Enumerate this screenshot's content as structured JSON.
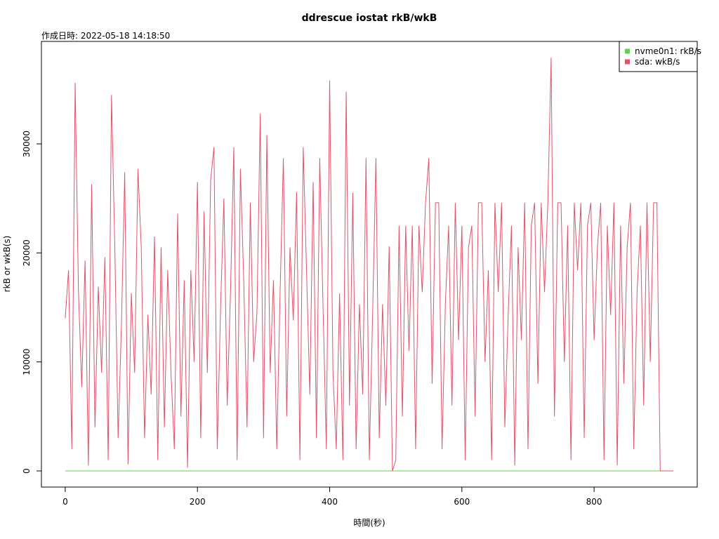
{
  "chart_data": {
    "type": "line",
    "title": "ddrescue iostat rkB/wkB",
    "subtitle": "作成日時: 2022-05-18 14:18:50",
    "x_label": "時間(秒)",
    "y_label": "rkB or wkB(s)",
    "legend": "topright",
    "xlim": [
      -36,
      956
    ],
    "ylim": [
      -1481,
      39400
    ],
    "xticks": [
      0,
      200,
      400,
      600,
      800
    ],
    "yticks": [
      0,
      10000,
      20000,
      30000
    ],
    "x": [
      0,
      5,
      10,
      15,
      20,
      25,
      30,
      35,
      40,
      45,
      50,
      55,
      60,
      65,
      70,
      75,
      80,
      85,
      90,
      95,
      100,
      105,
      110,
      115,
      120,
      125,
      130,
      135,
      140,
      145,
      150,
      155,
      160,
      165,
      170,
      175,
      180,
      185,
      190,
      195,
      200,
      205,
      210,
      215,
      220,
      225,
      230,
      235,
      240,
      245,
      250,
      255,
      260,
      265,
      270,
      275,
      280,
      285,
      290,
      295,
      300,
      305,
      310,
      315,
      320,
      325,
      330,
      335,
      340,
      345,
      350,
      355,
      360,
      365,
      370,
      375,
      380,
      385,
      390,
      395,
      400,
      405,
      410,
      415,
      420,
      425,
      430,
      435,
      440,
      445,
      450,
      455,
      460,
      465,
      470,
      475,
      480,
      485,
      490,
      495,
      500,
      505,
      510,
      515,
      520,
      525,
      530,
      535,
      540,
      545,
      550,
      555,
      560,
      565,
      570,
      575,
      580,
      585,
      590,
      595,
      600,
      605,
      610,
      615,
      620,
      625,
      630,
      635,
      640,
      645,
      650,
      655,
      660,
      665,
      670,
      675,
      680,
      685,
      690,
      695,
      700,
      705,
      710,
      715,
      720,
      725,
      730,
      735,
      740,
      745,
      750,
      755,
      760,
      765,
      770,
      775,
      780,
      785,
      790,
      795,
      800,
      805,
      810,
      815,
      820,
      825,
      830,
      835,
      840,
      845,
      850,
      855,
      860,
      865,
      870,
      875,
      880,
      885,
      890,
      895,
      900,
      905,
      910,
      915,
      920
    ],
    "series": [
      {
        "name": "nvme0n1: rkB/s",
        "color": "#61d04f",
        "values": [
          0,
          0,
          0,
          0,
          0,
          0,
          0,
          0,
          0,
          0,
          0,
          0,
          0,
          0,
          0,
          0,
          0,
          0,
          0,
          0,
          0,
          0,
          0,
          0,
          0,
          0,
          0,
          0,
          0,
          0,
          0,
          0,
          0,
          0,
          0,
          0,
          0,
          0,
          0,
          0,
          0,
          0,
          0,
          0,
          0,
          0,
          0,
          0,
          0,
          0,
          0,
          0,
          0,
          0,
          0,
          0,
          0,
          0,
          0,
          0,
          0,
          0,
          0,
          0,
          0,
          0,
          0,
          0,
          0,
          0,
          0,
          0,
          0,
          0,
          0,
          0,
          0,
          0,
          0,
          0,
          0,
          0,
          0,
          0,
          0,
          0,
          0,
          0,
          0,
          0,
          0,
          0,
          0,
          0,
          0,
          0,
          0,
          0,
          0,
          0,
          0,
          0,
          0,
          0,
          0,
          0,
          0,
          0,
          0,
          0,
          0,
          0,
          0,
          0,
          0,
          0,
          0,
          0,
          0,
          0,
          0,
          0,
          0,
          0,
          0,
          0,
          0,
          0,
          0,
          0,
          0,
          0,
          0,
          0,
          0,
          0,
          0,
          0,
          0,
          0,
          0,
          0,
          0,
          0,
          0,
          0,
          0,
          0,
          0,
          0,
          0,
          0,
          0,
          0,
          0,
          0,
          0,
          0,
          0,
          0,
          0,
          0,
          0,
          0,
          0,
          0,
          0,
          0,
          0,
          0,
          0,
          0,
          0,
          0,
          0,
          0,
          0,
          0,
          0,
          0,
          0,
          0,
          0,
          0,
          0
        ]
      },
      {
        "name": "sda: wkB/s",
        "color": "#df536b",
        "values": [
          14000,
          18400,
          2000,
          35600,
          16500,
          7700,
          19300,
          500,
          26300,
          4000,
          16900,
          9000,
          19600,
          1000,
          34500,
          20600,
          3000,
          13300,
          27400,
          600,
          16300,
          9000,
          27700,
          20500,
          3000,
          14300,
          7000,
          21500,
          1000,
          20500,
          4000,
          18400,
          9000,
          2000,
          23600,
          5000,
          17500,
          300,
          18400,
          10000,
          26500,
          3000,
          23800,
          9000,
          26700,
          29700,
          2000,
          15000,
          25000,
          6000,
          16400,
          29700,
          1000,
          27700,
          17500,
          4000,
          24600,
          10000,
          14500,
          32800,
          3000,
          30800,
          9000,
          17500,
          2000,
          16300,
          28700,
          5000,
          20500,
          13800,
          25600,
          1000,
          29700,
          18400,
          7000,
          26500,
          3000,
          28700,
          15000,
          2000,
          35800,
          9000,
          2000,
          16300,
          1000,
          34800,
          6000,
          25500,
          2000,
          15300,
          7000,
          28700,
          1000,
          14500,
          28700,
          3000,
          15300,
          6000,
          20600,
          0,
          1000,
          22500,
          5000,
          22500,
          11000,
          22500,
          2000,
          22500,
          16400,
          24600,
          28700,
          8000,
          24600,
          24600,
          2000,
          15300,
          22500,
          6000,
          24600,
          12000,
          22500,
          1000,
          20500,
          22500,
          5000,
          24600,
          24600,
          10000,
          18400,
          1000,
          24600,
          16400,
          24600,
          4000,
          14300,
          22500,
          500,
          20500,
          12000,
          24600,
          2000,
          22500,
          24600,
          8000,
          24600,
          16400,
          24600,
          37900,
          5000,
          24600,
          24600,
          10000,
          22500,
          1000,
          24600,
          18400,
          24600,
          3000,
          22500,
          24600,
          12000,
          20500,
          24600,
          1000,
          22500,
          14300,
          24600,
          500,
          22500,
          8000,
          20500,
          24600,
          2000,
          16400,
          22500,
          6000,
          24600,
          10000,
          24600,
          24600,
          0,
          0,
          0,
          0,
          0
        ]
      }
    ]
  }
}
